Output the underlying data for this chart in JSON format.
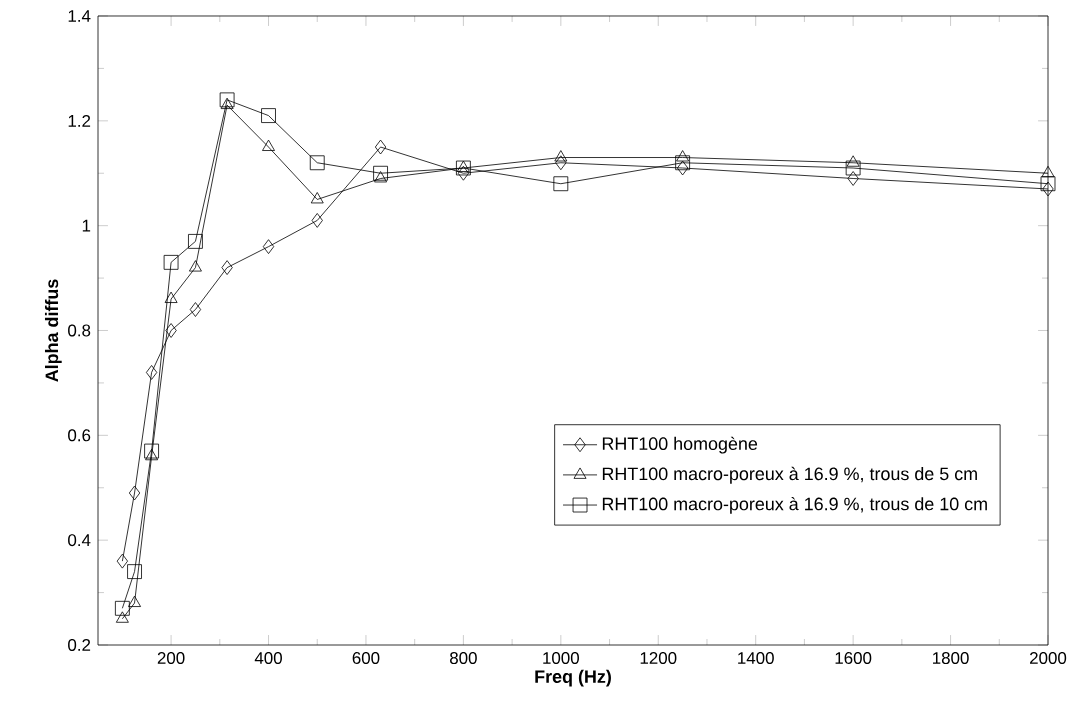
{
  "chart_data": {
    "type": "line",
    "xlabel": "Freq (Hz)",
    "ylabel": "Alpha diffus",
    "x": [
      100,
      125,
      160,
      200,
      250,
      315,
      400,
      500,
      630,
      800,
      1000,
      1250,
      1600,
      2000
    ],
    "series": [
      {
        "name": "RHT100 homogène",
        "color": "#000000",
        "marker": "diamond",
        "values": [
          0.36,
          0.49,
          0.72,
          0.8,
          0.84,
          0.92,
          0.96,
          1.01,
          1.15,
          1.1,
          1.12,
          1.11,
          1.09,
          1.07
        ]
      },
      {
        "name": "RHT100 macro-poreux à 16.9 %, trous de 5 cm",
        "color": "#000000",
        "marker": "triangle",
        "values": [
          0.25,
          0.28,
          0.56,
          0.86,
          0.92,
          1.23,
          1.15,
          1.05,
          1.09,
          1.11,
          1.13,
          1.13,
          1.12,
          1.1
        ]
      },
      {
        "name": "RHT100 macro-poreux à 16.9 %, trous de 10 cm",
        "color": "#000000",
        "marker": "square",
        "values": [
          0.27,
          0.34,
          0.57,
          0.93,
          0.97,
          1.24,
          1.21,
          1.12,
          1.1,
          1.11,
          1.08,
          1.12,
          1.11,
          1.08
        ]
      }
    ],
    "xlim": [
      50,
      2000
    ],
    "xticks": [
      200,
      400,
      600,
      800,
      1000,
      1200,
      1400,
      1600,
      1800,
      2000
    ],
    "ylim": [
      0.2,
      1.4
    ],
    "yticks": [
      0.2,
      0.4,
      0.6,
      0.8,
      1,
      1.2,
      1.4
    ],
    "grid": false,
    "legend": "bottom right",
    "line_style": "solid"
  }
}
